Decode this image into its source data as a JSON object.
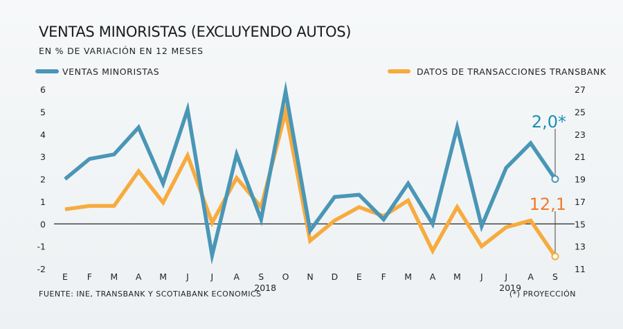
{
  "chart_data": {
    "type": "line",
    "title": "VENTAS MINORISTAS (EXCLUYENDO AUTOS)",
    "subtitle": "EN % DE VARIACIÓN EN 12 MESES",
    "categories": [
      "E",
      "F",
      "M",
      "A",
      "M",
      "J",
      "J",
      "A",
      "S",
      "O",
      "N",
      "D",
      "E",
      "F",
      "M",
      "A",
      "M",
      "J",
      "J",
      "A",
      "S"
    ],
    "year_labels": [
      {
        "label": "2018",
        "index": 8
      },
      {
        "label": "2019",
        "index": 18
      }
    ],
    "left_axis": {
      "ticks": [
        "6",
        "5",
        "4",
        "3",
        "2",
        "1",
        "0",
        "-1",
        "-2"
      ],
      "range": [
        -2,
        6
      ]
    },
    "right_axis": {
      "ticks": [
        "27",
        "25",
        "23",
        "21",
        "19",
        "17",
        "15",
        "13",
        "11"
      ],
      "range": [
        11,
        27
      ]
    },
    "zero_line": true,
    "series": [
      {
        "name": "VENTAS MINORISTAS",
        "axis": "left",
        "color": "#4a96b6",
        "values": [
          2.0,
          2.9,
          3.1,
          4.3,
          1.8,
          5.1,
          -1.4,
          3.1,
          0.2,
          5.9,
          -0.3,
          1.2,
          1.3,
          0.2,
          1.8,
          0.0,
          4.3,
          -0.1,
          2.5,
          3.6,
          2.0
        ]
      },
      {
        "name": "DATOS DE TRANSACCIONES TRANSBANK",
        "axis": "right",
        "color": "#f7ab3e",
        "values": [
          16.3,
          16.6,
          16.6,
          19.7,
          16.9,
          21.1,
          15.1,
          19.1,
          16.5,
          25.0,
          13.5,
          15.3,
          16.5,
          15.7,
          17.1,
          12.6,
          16.5,
          13.0,
          14.7,
          15.3,
          12.1
        ]
      }
    ],
    "annotations": [
      {
        "text": "2,0*",
        "series": 0,
        "index": 20,
        "color": "#1c8fb3"
      },
      {
        "text": "12,1",
        "series": 1,
        "index": 20,
        "color": "#ef7b2b"
      }
    ]
  },
  "footer": {
    "source": "FUENTE: INE, TRANSBANK Y SCOTIABANK ECONOMICS",
    "note": "(*) PROYECCIÓN"
  }
}
